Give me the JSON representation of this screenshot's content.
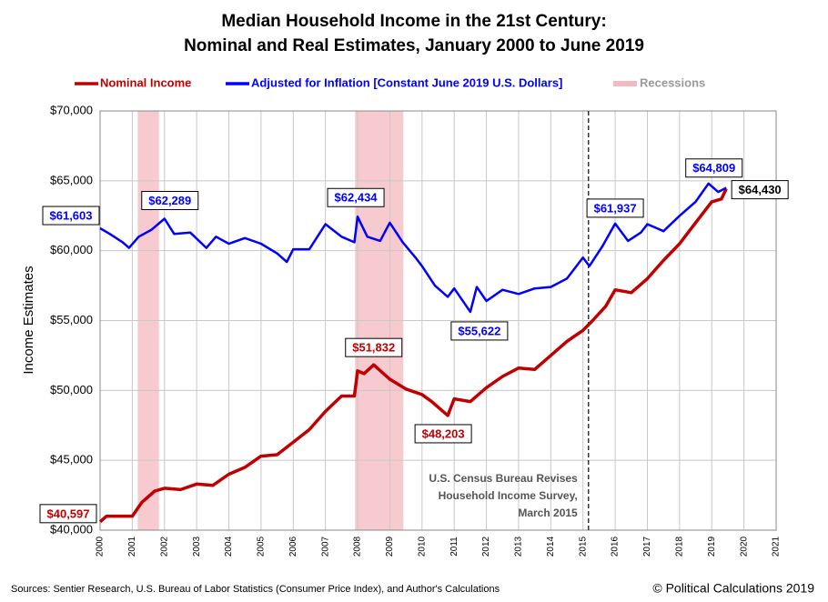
{
  "chart_data": {
    "type": "line",
    "title": [
      "Median Household Income in the 21st Century:",
      "Nominal and Real Estimates, January 2000 to June 2019"
    ],
    "y_label": "Income Estimates",
    "xlim": [
      2000,
      2021
    ],
    "xticks": [
      2000,
      2001,
      2002,
      2003,
      2004,
      2005,
      2006,
      2007,
      2008,
      2009,
      2010,
      2011,
      2012,
      2013,
      2014,
      2015,
      2016,
      2017,
      2018,
      2019,
      2020,
      2021
    ],
    "ylim": [
      40000,
      70000
    ],
    "yticks": [
      {
        "value": 40000,
        "label": "$40,000"
      },
      {
        "value": 45000,
        "label": "$45,000"
      },
      {
        "value": 50000,
        "label": "$50,000"
      },
      {
        "value": 55000,
        "label": "$55,000"
      },
      {
        "value": 60000,
        "label": "$60,000"
      },
      {
        "value": 65000,
        "label": "$65,000"
      },
      {
        "value": 70000,
        "label": "$70,000"
      }
    ],
    "grid": true,
    "series": [
      {
        "name": "Nominal Income",
        "color": "#c00000",
        "x": [
          2000.0,
          2000.2,
          2001.0,
          2001.3,
          2001.7,
          2002.0,
          2002.5,
          2003.0,
          2003.5,
          2004.0,
          2004.5,
          2005.0,
          2005.5,
          2006.0,
          2006.5,
          2007.0,
          2007.5,
          2007.9,
          2008.0,
          2008.2,
          2008.5,
          2009.0,
          2009.5,
          2010.0,
          2010.3,
          2010.8,
          2011.0,
          2011.5,
          2012.0,
          2012.5,
          2013.0,
          2013.5,
          2014.0,
          2014.5,
          2015.0,
          2015.3,
          2015.7,
          2016.0,
          2016.5,
          2017.0,
          2017.5,
          2018.0,
          2018.5,
          2019.0,
          2019.3,
          2019.45
        ],
        "values": [
          40597,
          41000,
          41000,
          42000,
          42800,
          43000,
          42900,
          43300,
          43200,
          44000,
          44500,
          45300,
          45400,
          46300,
          47200,
          48500,
          49600,
          49600,
          51400,
          51200,
          51832,
          50800,
          50100,
          49700,
          49200,
          48203,
          49400,
          49200,
          50200,
          51000,
          51600,
          51500,
          52500,
          53500,
          54300,
          55000,
          56000,
          57200,
          57000,
          58000,
          59300,
          60500,
          62000,
          63500,
          63700,
          64430
        ]
      },
      {
        "name": "Adjusted for Inflation [Constant June 2019 U.S. Dollars]",
        "color": "#0000ff",
        "x": [
          2000.0,
          2000.3,
          2000.7,
          2000.9,
          2001.2,
          2001.6,
          2002.0,
          2002.3,
          2002.8,
          2003.3,
          2003.6,
          2004.0,
          2004.5,
          2005.0,
          2005.5,
          2005.8,
          2006.0,
          2006.5,
          2007.0,
          2007.5,
          2007.9,
          2008.0,
          2008.3,
          2008.7,
          2009.0,
          2009.4,
          2009.8,
          2010.0,
          2010.4,
          2010.8,
          2011.0,
          2011.5,
          2011.7,
          2012.0,
          2012.5,
          2013.0,
          2013.5,
          2014.0,
          2014.5,
          2015.0,
          2015.2,
          2015.6,
          2016.0,
          2016.4,
          2016.8,
          2017.0,
          2017.5,
          2018.0,
          2018.5,
          2018.9,
          2019.2,
          2019.45
        ],
        "values": [
          61603,
          61200,
          60600,
          60200,
          61000,
          61500,
          62289,
          61200,
          61300,
          60200,
          61000,
          60500,
          60900,
          60500,
          59800,
          59200,
          60100,
          60100,
          61900,
          61000,
          60600,
          62434,
          61000,
          60700,
          62000,
          60600,
          59500,
          58900,
          57500,
          56700,
          57300,
          55622,
          57400,
          56400,
          57200,
          56900,
          57300,
          57400,
          58000,
          59500,
          58900,
          60300,
          61937,
          60700,
          61300,
          61900,
          61400,
          62500,
          63500,
          64809,
          64200,
          64500
        ]
      }
    ],
    "recession_name": "Recessions",
    "recession_color": "#f4b8bf",
    "recessions": [
      [
        2001.17,
        2001.83
      ],
      [
        2007.92,
        2009.42
      ]
    ],
    "revision_x": 2015.17,
    "revision_note": [
      "U.S. Census Bureau Revises",
      "Household Income Survey,",
      "March 2015"
    ],
    "callouts": [
      {
        "x": 2000.0,
        "value": 61603,
        "label": "$61,603",
        "color": "#0000ff"
      },
      {
        "x": 2002.0,
        "value": 62289,
        "label": "$62,289",
        "color": "#0000ff"
      },
      {
        "x": 2008.0,
        "value": 62434,
        "label": "$62,434",
        "color": "#0000ff"
      },
      {
        "x": 2011.5,
        "value": 55622,
        "label": "$55,622",
        "color": "#0000ff"
      },
      {
        "x": 2008.5,
        "value": 51832,
        "label": "$51,832",
        "color": "#c00000"
      },
      {
        "x": 2010.8,
        "value": 48203,
        "label": "$48,203",
        "color": "#c00000"
      },
      {
        "x": 2000.0,
        "value": 40597,
        "label": "$40,597",
        "color": "#c00000"
      },
      {
        "x": 2016.0,
        "value": 61937,
        "label": "$61,937",
        "color": "#0000ff"
      },
      {
        "x": 2018.9,
        "value": 64809,
        "label": "$64,809",
        "color": "#0000ff"
      },
      {
        "x": 2019.45,
        "value": 64430,
        "label": "$64,430",
        "color": "#000000"
      }
    ],
    "source": "Sources: Sentier Research, U.S. Bureau of Labor Statistics (Consumer  Price Index), and Author's Calculations",
    "copyright": "© Political Calculations 2019"
  }
}
